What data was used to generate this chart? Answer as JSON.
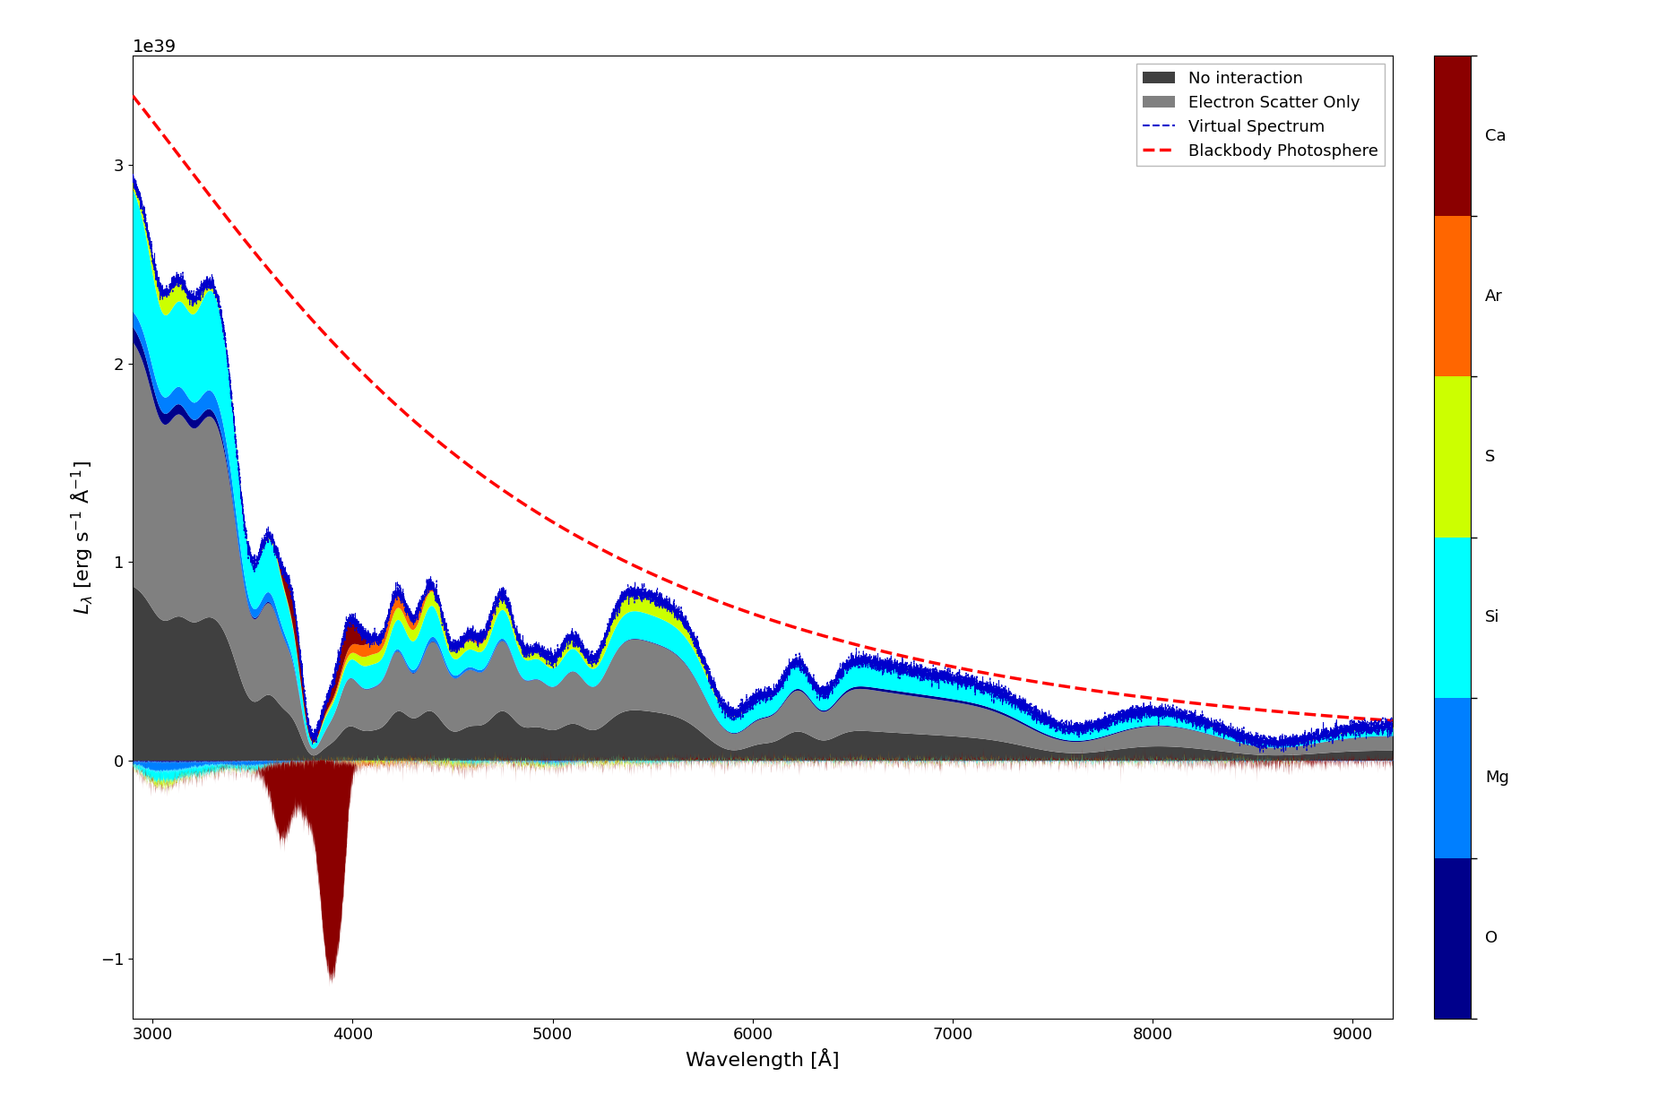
{
  "xlabel": "Wavelength [Å]",
  "ylabel": "$L_{\\lambda}$ [erg s$^{-1}$ Å$^{-1}$]",
  "xlim": [
    2900,
    9200
  ],
  "ylim": [
    -1.3e+39,
    3.55e+39
  ],
  "element_colors": {
    "Ca": "#8B0000",
    "Ar": "#FF6600",
    "S": "#CCFF00",
    "Si": "#00FFFF",
    "Mg": "#007FFF",
    "O": "#00008B"
  },
  "colorbar_labels_top_to_bottom": [
    "Ca",
    "Ar",
    "S",
    "Si",
    "Mg",
    "O"
  ],
  "colorbar_colors_top_to_bottom": [
    "#8B0000",
    "#FF6600",
    "#CCFF00",
    "#00FFFF",
    "#007FFF",
    "#00008B"
  ],
  "no_interaction_color": "#404040",
  "electron_scatter_color": "#808080",
  "virtual_spectrum_color": "#0000CC",
  "blackbody_color": "#FF0000",
  "blackbody_T": 13000,
  "blackbody_peak": 3.35e+39,
  "figsize": [
    18.5,
    12.49
  ],
  "dpi": 100
}
